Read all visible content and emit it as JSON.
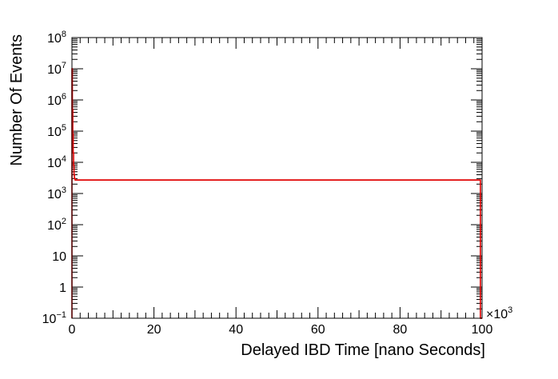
{
  "chart_data": {
    "type": "histogram",
    "title": "",
    "xlabel": "Delayed IBD Time [nano Seconds]",
    "ylabel": "Number Of Events",
    "x_exponent_label": "×10",
    "x_exponent_power": "3",
    "x_scale_factor": 1000,
    "xlim": [
      0,
      100
    ],
    "ylim": [
      0.1,
      100000000
    ],
    "y_scale": "log",
    "grid": false,
    "legend": "none",
    "line_color": "#e00000",
    "x_ticks": [
      {
        "value": 0,
        "label": "0"
      },
      {
        "value": 20,
        "label": "20"
      },
      {
        "value": 40,
        "label": "40"
      },
      {
        "value": 60,
        "label": "60"
      },
      {
        "value": 80,
        "label": "80"
      },
      {
        "value": 100,
        "label": "100"
      }
    ],
    "y_ticks": [
      {
        "value": 0.1,
        "base": "10",
        "exp": "−1"
      },
      {
        "value": 1,
        "base": "1",
        "exp": ""
      },
      {
        "value": 10,
        "base": "10",
        "exp": ""
      },
      {
        "value": 100,
        "base": "10",
        "exp": "2"
      },
      {
        "value": 1000,
        "base": "10",
        "exp": "3"
      },
      {
        "value": 10000,
        "base": "10",
        "exp": "4"
      },
      {
        "value": 100000,
        "base": "10",
        "exp": "5"
      },
      {
        "value": 1000000,
        "base": "10",
        "exp": "6"
      },
      {
        "value": 10000000,
        "base": "10",
        "exp": "7"
      },
      {
        "value": 100000000,
        "base": "10",
        "exp": "8"
      }
    ],
    "series": [
      {
        "bins": [
          {
            "x0": 0,
            "x1": 0.1,
            "y": 10000000
          },
          {
            "x0": 0.1,
            "x1": 0.2,
            "y": 500000
          },
          {
            "x0": 0.2,
            "x1": 0.3,
            "y": 80000
          },
          {
            "x0": 0.3,
            "x1": 0.4,
            "y": 20000
          },
          {
            "x0": 0.4,
            "x1": 0.5,
            "y": 8000
          },
          {
            "x0": 0.5,
            "x1": 0.6,
            "y": 4000
          },
          {
            "x0": 0.6,
            "x1": 0.8,
            "y": 3000
          },
          {
            "x0": 0.8,
            "x1": 99.6,
            "y": 2700
          },
          {
            "x0": 99.6,
            "x1": 100,
            "y": 0.1
          }
        ]
      }
    ]
  }
}
